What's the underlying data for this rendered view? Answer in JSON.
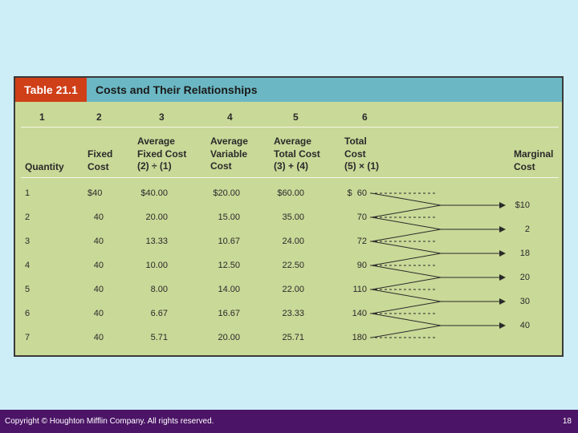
{
  "table": {
    "tag": "Table 21.1",
    "title": "Costs and Their Relationships",
    "column_numbers": [
      "1",
      "2",
      "3",
      "4",
      "5",
      "6"
    ],
    "headers": {
      "quantity": "Quantity",
      "fixed_cost": "Fixed\nCost",
      "avg_fixed": "Average\nFixed Cost\n(2) ÷ (1)",
      "avg_variable": "Average\nVariable\nCost",
      "avg_total": "Average\nTotal Cost\n(3) + (4)",
      "total_cost": "Total\nCost\n(5) × (1)",
      "marginal_cost": "Marginal\nCost"
    },
    "rows": [
      {
        "quantity": "1",
        "fixed": "$40",
        "avg_fixed": "$40.00",
        "avg_variable": "$20.00",
        "avg_total": "$60.00",
        "total": "$  60"
      },
      {
        "quantity": "2",
        "fixed": "40",
        "avg_fixed": "20.00",
        "avg_variable": "15.00",
        "avg_total": "35.00",
        "total": "70"
      },
      {
        "quantity": "3",
        "fixed": "40",
        "avg_fixed": "13.33",
        "avg_variable": "10.67",
        "avg_total": "24.00",
        "total": "72"
      },
      {
        "quantity": "4",
        "fixed": "40",
        "avg_fixed": "10.00",
        "avg_variable": "12.50",
        "avg_total": "22.50",
        "total": "90"
      },
      {
        "quantity": "5",
        "fixed": "40",
        "avg_fixed": "8.00",
        "avg_variable": "14.00",
        "avg_total": "22.00",
        "total": "110"
      },
      {
        "quantity": "6",
        "fixed": "40",
        "avg_fixed": "6.67",
        "avg_variable": "16.67",
        "avg_total": "23.33",
        "total": "140"
      },
      {
        "quantity": "7",
        "fixed": "40",
        "avg_fixed": "5.71",
        "avg_variable": "20.00",
        "avg_total": "25.71",
        "total": "180"
      }
    ],
    "marginal_costs": [
      "$10",
      "2",
      "18",
      "20",
      "30",
      "40"
    ]
  },
  "footer": {
    "copyright": "Copyright © Houghton Mifflin Company. All rights reserved.",
    "page_number": "18"
  },
  "colors": {
    "background": "#cdeef7",
    "table_fill": "#c9d998",
    "title_bar": "#6bb8c4",
    "title_tag": "#cf3f18",
    "footer": "#4b1466"
  }
}
